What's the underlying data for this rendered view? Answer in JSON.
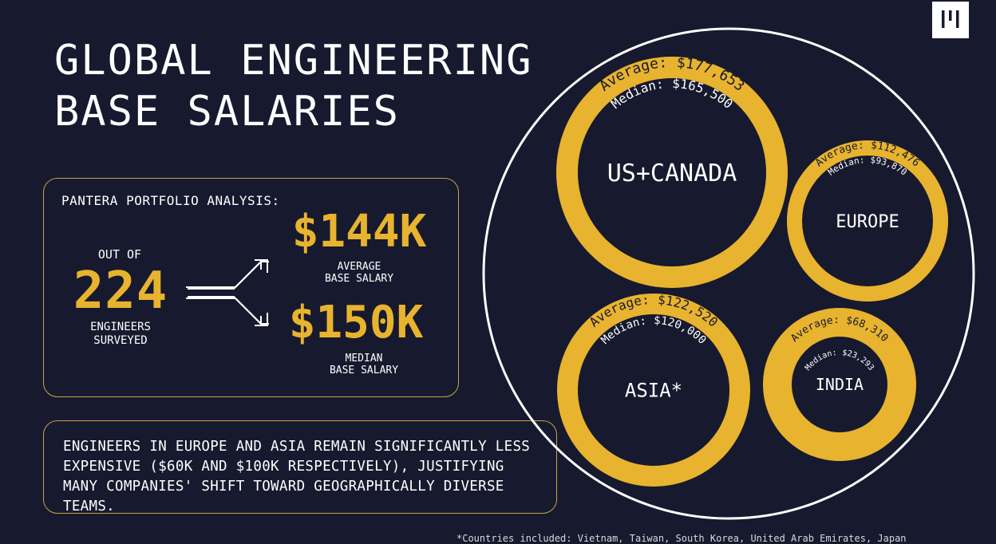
{
  "header": {
    "title_line1": "GLOBAL ENGINEERING",
    "title_line2": "BASE SALARIES"
  },
  "stats": {
    "heading": "PANTERA PORTFOLIO ANALYSIS:",
    "out_of_label": "OUT OF",
    "count": "224",
    "count_label_line1": "ENGINEERS",
    "count_label_line2": "SURVEYED",
    "average_value": "$144K",
    "average_label_line1": "AVERAGE",
    "average_label_line2": "BASE SALARY",
    "median_value": "$150K",
    "median_label_line1": "MEDIAN",
    "median_label_line2": "BASE SALARY"
  },
  "note": {
    "text": "ENGINEERS IN EUROPE AND ASIA REMAIN SIGNIFICANTLY LESS EXPENSIVE ($60K AND $100K RESPECTIVELY), JUSTIFYING MANY COMPANIES' SHIFT TOWARD GEOGRAPHICALLY DIVERSE TEAMS."
  },
  "footnote": "*Countries included: Vietnam, Taiwan, South Korea, United Arab Emirates, Japan",
  "colors": {
    "background": "#171a2e",
    "accent": "#e8b32e",
    "text": "#ffffff"
  },
  "icons": {
    "logo": "pantera-logo-icon",
    "arrow": "fork-arrow-icon"
  },
  "chart_data": {
    "type": "bubble",
    "title": "",
    "series": [
      {
        "name": "US+CANADA",
        "average_label": "Average: $177,653",
        "median_label": "Median: $165,500",
        "average": 177653,
        "median": 165500
      },
      {
        "name": "EUROPE",
        "average_label": "Average: $112,476",
        "median_label": "Median: $93,870",
        "average": 112476,
        "median": 93870
      },
      {
        "name": "ASIA*",
        "average_label": "Average: $122,520",
        "median_label": "Median: $120,000",
        "average": 122520,
        "median": 120000
      },
      {
        "name": "INDIA",
        "average_label": "Average: $68,310",
        "median_label": "Median: $23,293",
        "average": 68310,
        "median": 23293
      }
    ]
  }
}
